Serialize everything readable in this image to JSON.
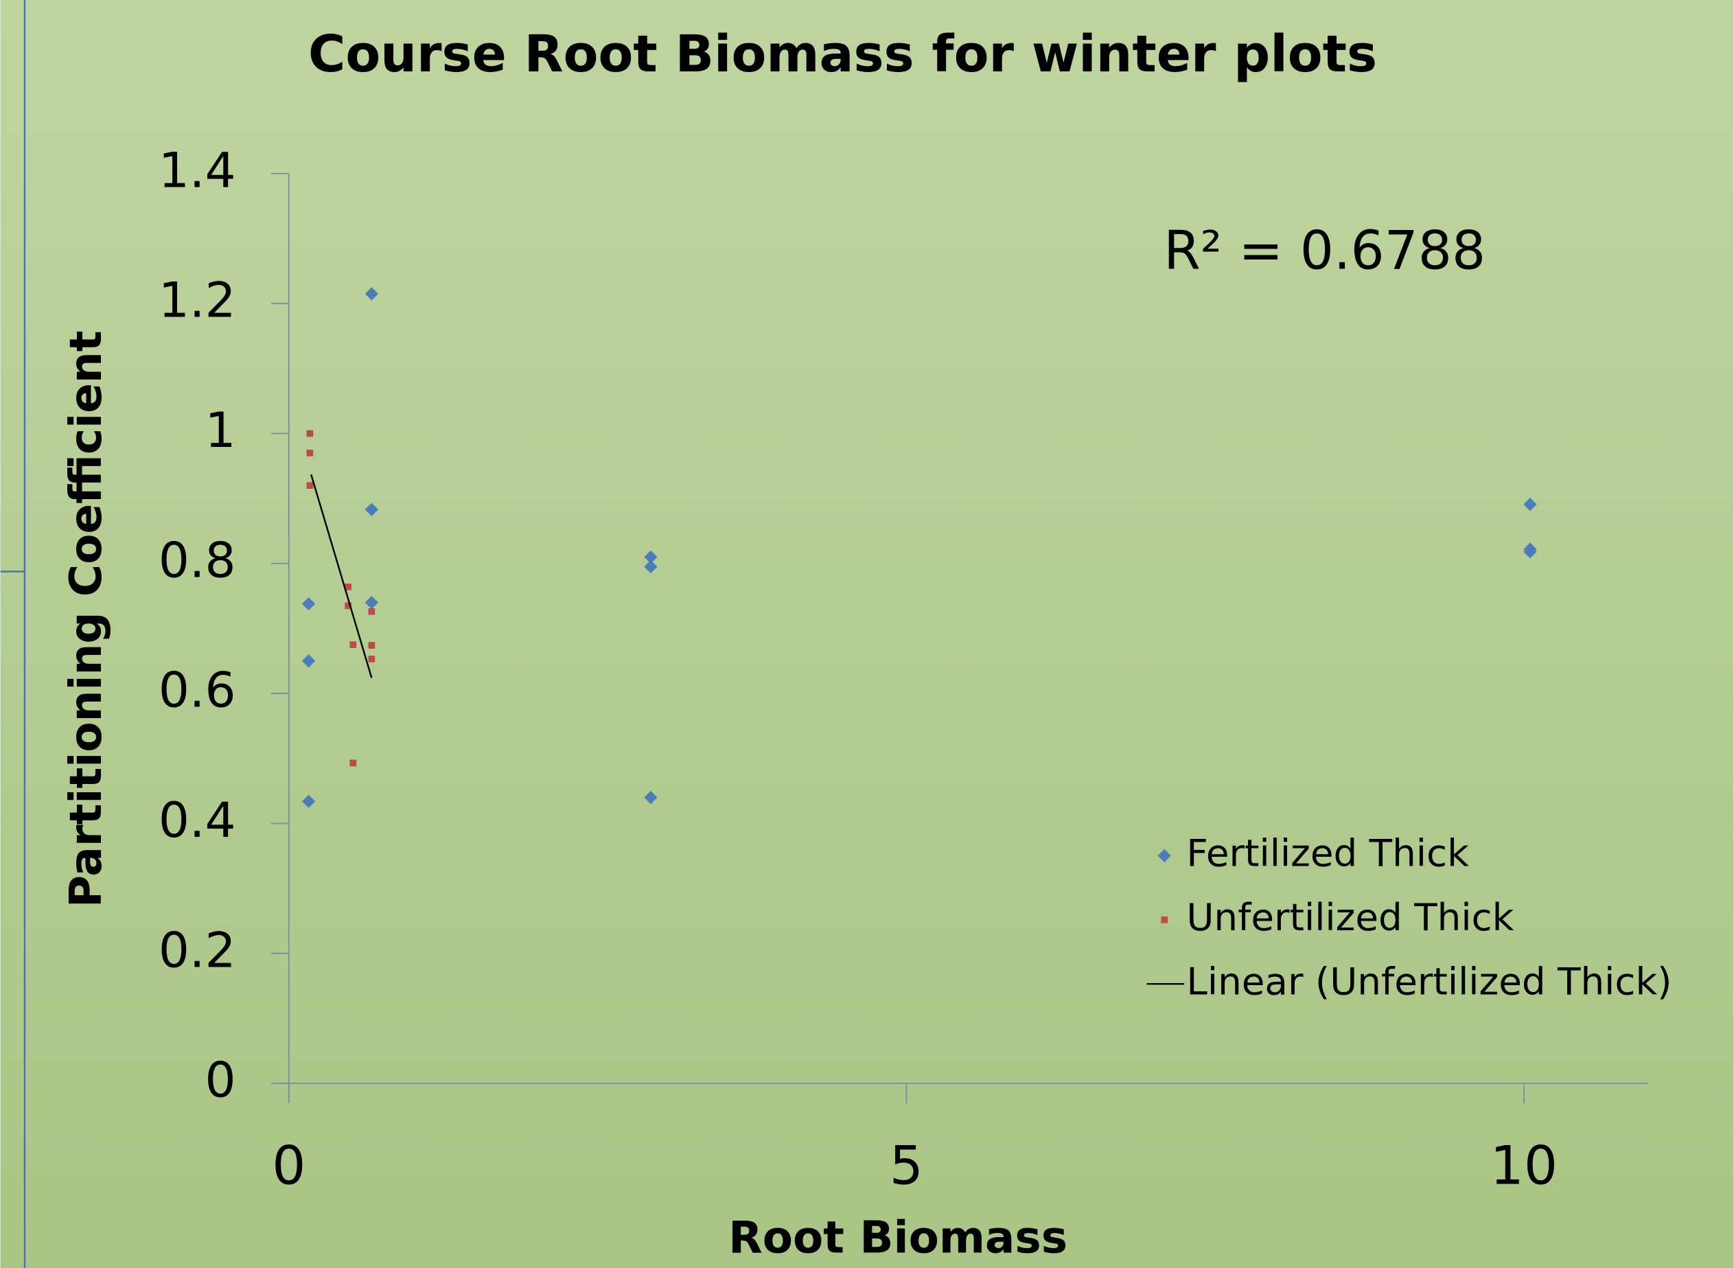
{
  "chart_data": {
    "type": "scatter",
    "title": "Course Root Biomass for winter plots",
    "x_label": "Root Biomass",
    "y_label": "Partitioning Coefficient",
    "annotation": "R² = 0.6788",
    "xlim": [
      0,
      11
    ],
    "ylim": [
      0,
      1.4
    ],
    "xticks": [
      0,
      5,
      10
    ],
    "yticks": [
      0,
      0.2,
      0.4,
      0.6,
      0.8,
      1,
      1.2,
      1.4
    ],
    "legend": "lower right",
    "series": [
      {
        "name": "Fertilized Thick",
        "color": "#4a7ebb",
        "marker": "diamond",
        "x": [
          0.16,
          0.16,
          0.16,
          0.67,
          0.67,
          0.67,
          2.93,
          2.93,
          2.93,
          10.05,
          10.05,
          10.05
        ],
        "values": [
          0.738,
          0.65,
          0.434,
          1.215,
          0.883,
          0.74,
          0.81,
          0.795,
          0.44,
          0.891,
          0.822,
          0.818
        ]
      },
      {
        "name": "Unfertilized Thick",
        "color": "#be4b48",
        "marker": "square",
        "x": [
          0.17,
          0.17,
          0.17,
          0.48,
          0.48,
          0.52,
          0.52,
          0.67,
          0.67,
          0.67
        ],
        "values": [
          1.0,
          0.97,
          0.92,
          0.764,
          0.735,
          0.675,
          0.493,
          0.726,
          0.674,
          0.653
        ]
      },
      {
        "name": "Linear (Unfertilized Thick)",
        "color": "#000000",
        "marker": "line",
        "x": [
          0.18,
          0.67
        ],
        "values": [
          0.937,
          0.624
        ]
      }
    ]
  }
}
